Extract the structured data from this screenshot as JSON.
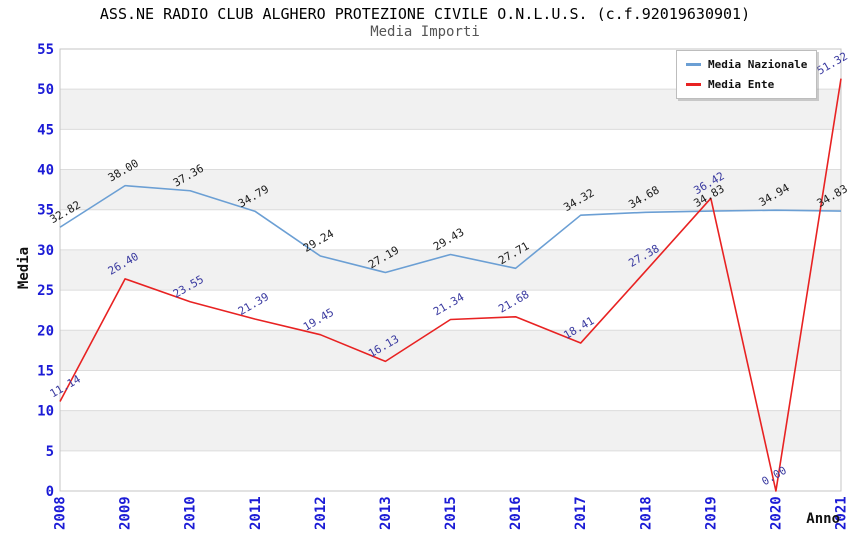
{
  "title": "ASS.NE RADIO CLUB ALGHERO PROTEZIONE CIVILE O.N.L.U.S. (c.f.92019630901)",
  "subtitle": "Media Importi",
  "chart_data": {
    "type": "line",
    "categories": [
      "2008",
      "2009",
      "2010",
      "2011",
      "2012",
      "2013",
      "2015",
      "2016",
      "2017",
      "2018",
      "2019",
      "2020",
      "2021"
    ],
    "series": [
      {
        "name": "Media Nazionale",
        "color": "#6b9fd4",
        "label_color": "#1c1c1c",
        "values": [
          32.82,
          38.0,
          37.36,
          34.79,
          29.24,
          27.19,
          29.43,
          27.71,
          34.32,
          34.68,
          34.83,
          34.94,
          34.83
        ]
      },
      {
        "name": "Media Ente",
        "color": "#e82222",
        "label_color": "#3a3aa0",
        "values": [
          11.14,
          26.4,
          23.55,
          21.39,
          19.45,
          16.13,
          21.34,
          21.68,
          18.41,
          27.38,
          36.42,
          0.0,
          51.32
        ]
      }
    ],
    "xlabel": "Anno",
    "ylabel": "Media",
    "ylim": [
      0,
      55
    ],
    "ytick_step": 5,
    "grid": true,
    "legend_position": "top-right",
    "colors": {
      "tick_label": "#1b1bd6",
      "band_fill": "#f1f1f1",
      "grid_line": "#dcdcdc",
      "plot_border": "#c4c4c4"
    }
  }
}
